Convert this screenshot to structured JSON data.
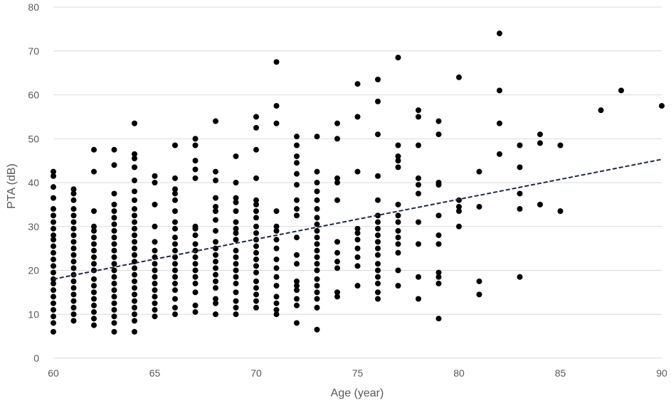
{
  "chart_data": {
    "type": "scatter",
    "title": "",
    "xlabel": "Age (year)",
    "ylabel": "PTA (dB)",
    "xlim": [
      60,
      90
    ],
    "ylim": [
      0,
      80
    ],
    "x_ticks": [
      60,
      65,
      70,
      75,
      80,
      85,
      90
    ],
    "y_ticks": [
      0,
      10,
      20,
      30,
      40,
      50,
      60,
      70,
      80
    ],
    "grid": "horizontal",
    "legend": "none",
    "marker_color": "#000000",
    "trendline": {
      "type": "linear",
      "style": "dashed",
      "color": "#1f2a44",
      "from": [
        60,
        18.0
      ],
      "to": [
        90,
        45.3
      ]
    },
    "points": [
      [
        60,
        6
      ],
      [
        60,
        8
      ],
      [
        60,
        9.5
      ],
      [
        60,
        11
      ],
      [
        60,
        12.5
      ],
      [
        60,
        14
      ],
      [
        60,
        15.5
      ],
      [
        60,
        17
      ],
      [
        60,
        18
      ],
      [
        60,
        19.5
      ],
      [
        60,
        21
      ],
      [
        60,
        22.5
      ],
      [
        60,
        24
      ],
      [
        60,
        25.5
      ],
      [
        60,
        27
      ],
      [
        60,
        28
      ],
      [
        60,
        29.5
      ],
      [
        60,
        31
      ],
      [
        60,
        32.5
      ],
      [
        60,
        34
      ],
      [
        60,
        36.5
      ],
      [
        60,
        39
      ],
      [
        60,
        41.5
      ],
      [
        60,
        42.5
      ],
      [
        61,
        8.5
      ],
      [
        61,
        10
      ],
      [
        61,
        11.5
      ],
      [
        61,
        13
      ],
      [
        61,
        14.5
      ],
      [
        61,
        16
      ],
      [
        61,
        17.5
      ],
      [
        61,
        19
      ],
      [
        61,
        20.5
      ],
      [
        61,
        22
      ],
      [
        61,
        23.5
      ],
      [
        61,
        25
      ],
      [
        61,
        26.5
      ],
      [
        61,
        28
      ],
      [
        61,
        29.5
      ],
      [
        61,
        31
      ],
      [
        61,
        32.5
      ],
      [
        61,
        34
      ],
      [
        61,
        36
      ],
      [
        61,
        37.5
      ],
      [
        61,
        38.5
      ],
      [
        62,
        7.5
      ],
      [
        62,
        9
      ],
      [
        62,
        10.5
      ],
      [
        62,
        12
      ],
      [
        62,
        13.5
      ],
      [
        62,
        15
      ],
      [
        62,
        16.5
      ],
      [
        62,
        18
      ],
      [
        62,
        20
      ],
      [
        62,
        21.5
      ],
      [
        62,
        23
      ],
      [
        62,
        24.5
      ],
      [
        62,
        26
      ],
      [
        62,
        27.5
      ],
      [
        62,
        29
      ],
      [
        62,
        30
      ],
      [
        62,
        33.5
      ],
      [
        62,
        42.5
      ],
      [
        62,
        47.5
      ],
      [
        63,
        6
      ],
      [
        63,
        8
      ],
      [
        63,
        9.5
      ],
      [
        63,
        11
      ],
      [
        63,
        12.5
      ],
      [
        63,
        14
      ],
      [
        63,
        15.5
      ],
      [
        63,
        17
      ],
      [
        63,
        18.5
      ],
      [
        63,
        20
      ],
      [
        63,
        21.5
      ],
      [
        63,
        23
      ],
      [
        63,
        24.5
      ],
      [
        63,
        26
      ],
      [
        63,
        27.5
      ],
      [
        63,
        29
      ],
      [
        63,
        30.5
      ],
      [
        63,
        32
      ],
      [
        63,
        33.5
      ],
      [
        63,
        35
      ],
      [
        63,
        37.5
      ],
      [
        63,
        44
      ],
      [
        63,
        47.5
      ],
      [
        64,
        6
      ],
      [
        64,
        8.5
      ],
      [
        64,
        10
      ],
      [
        64,
        11.5
      ],
      [
        64,
        13
      ],
      [
        64,
        14.5
      ],
      [
        64,
        16
      ],
      [
        64,
        17.5
      ],
      [
        64,
        19
      ],
      [
        64,
        20.5
      ],
      [
        64,
        22
      ],
      [
        64,
        23.5
      ],
      [
        64,
        25
      ],
      [
        64,
        26.5
      ],
      [
        64,
        28
      ],
      [
        64,
        29.5
      ],
      [
        64,
        31
      ],
      [
        64,
        32.5
      ],
      [
        64,
        34
      ],
      [
        64,
        36
      ],
      [
        64,
        38
      ],
      [
        64,
        40.5
      ],
      [
        64,
        43.5
      ],
      [
        64,
        45.5
      ],
      [
        64,
        46.5
      ],
      [
        64,
        53.5
      ],
      [
        65,
        9.5
      ],
      [
        65,
        11
      ],
      [
        65,
        12.5
      ],
      [
        65,
        14
      ],
      [
        65,
        15.5
      ],
      [
        65,
        17
      ],
      [
        65,
        18.5
      ],
      [
        65,
        20
      ],
      [
        65,
        21.5
      ],
      [
        65,
        23
      ],
      [
        65,
        24.5
      ],
      [
        65,
        26.5
      ],
      [
        65,
        30
      ],
      [
        65,
        35
      ],
      [
        65,
        40
      ],
      [
        65,
        41.5
      ],
      [
        66,
        10
      ],
      [
        66,
        11.5
      ],
      [
        66,
        13.5
      ],
      [
        66,
        15.5
      ],
      [
        66,
        17
      ],
      [
        66,
        18.5
      ],
      [
        66,
        20
      ],
      [
        66,
        21.5
      ],
      [
        66,
        23
      ],
      [
        66,
        24.5
      ],
      [
        66,
        26
      ],
      [
        66,
        27.5
      ],
      [
        66,
        29.5
      ],
      [
        66,
        31
      ],
      [
        66,
        33.5
      ],
      [
        66,
        36
      ],
      [
        66,
        37.5
      ],
      [
        66,
        38.5
      ],
      [
        66,
        41
      ],
      [
        66,
        48.5
      ],
      [
        67,
        10.5
      ],
      [
        67,
        12
      ],
      [
        67,
        15
      ],
      [
        67,
        17
      ],
      [
        67,
        18.5
      ],
      [
        67,
        20
      ],
      [
        67,
        21.5
      ],
      [
        67,
        23
      ],
      [
        67,
        24.5
      ],
      [
        67,
        26
      ],
      [
        67,
        28
      ],
      [
        67,
        29.5
      ],
      [
        67,
        30
      ],
      [
        67,
        41
      ],
      [
        67,
        43
      ],
      [
        67,
        45
      ],
      [
        67,
        48.5
      ],
      [
        67,
        50
      ],
      [
        68,
        10
      ],
      [
        68,
        12.5
      ],
      [
        68,
        13.5
      ],
      [
        68,
        16
      ],
      [
        68,
        17.5
      ],
      [
        68,
        19
      ],
      [
        68,
        20.5
      ],
      [
        68,
        22
      ],
      [
        68,
        23.5
      ],
      [
        68,
        25
      ],
      [
        68,
        26.5
      ],
      [
        68,
        29
      ],
      [
        68,
        31.5
      ],
      [
        68,
        33.5
      ],
      [
        68,
        34.5
      ],
      [
        68,
        36.5
      ],
      [
        68,
        40.5
      ],
      [
        68,
        42.5
      ],
      [
        68,
        54
      ],
      [
        69,
        10
      ],
      [
        69,
        11.5
      ],
      [
        69,
        13
      ],
      [
        69,
        15
      ],
      [
        69,
        17
      ],
      [
        69,
        18.5
      ],
      [
        69,
        20
      ],
      [
        69,
        21.5
      ],
      [
        69,
        23
      ],
      [
        69,
        24.5
      ],
      [
        69,
        27
      ],
      [
        69,
        28.5
      ],
      [
        69,
        29.5
      ],
      [
        69,
        31
      ],
      [
        69,
        33.5
      ],
      [
        69,
        35.5
      ],
      [
        69,
        36.5
      ],
      [
        69,
        40
      ],
      [
        69,
        46
      ],
      [
        70,
        11.5
      ],
      [
        70,
        13
      ],
      [
        70,
        14.5
      ],
      [
        70,
        16
      ],
      [
        70,
        17.5
      ],
      [
        70,
        19.5
      ],
      [
        70,
        21
      ],
      [
        70,
        22.5
      ],
      [
        70,
        24
      ],
      [
        70,
        25.5
      ],
      [
        70,
        27
      ],
      [
        70,
        28.5
      ],
      [
        70,
        30
      ],
      [
        70,
        32
      ],
      [
        70,
        33.5
      ],
      [
        70,
        35
      ],
      [
        70,
        36
      ],
      [
        70,
        41
      ],
      [
        70,
        47.5
      ],
      [
        70,
        52.5
      ],
      [
        70,
        55
      ],
      [
        71,
        10
      ],
      [
        71,
        11
      ],
      [
        71,
        12.5
      ],
      [
        71,
        14
      ],
      [
        71,
        16.5
      ],
      [
        71,
        18.5
      ],
      [
        71,
        20.5
      ],
      [
        71,
        22.5
      ],
      [
        71,
        25
      ],
      [
        71,
        27
      ],
      [
        71,
        29
      ],
      [
        71,
        30
      ],
      [
        71,
        33.5
      ],
      [
        71,
        53.5
      ],
      [
        71,
        57.5
      ],
      [
        71,
        67.5
      ],
      [
        72,
        8
      ],
      [
        72,
        12
      ],
      [
        72,
        13.5
      ],
      [
        72,
        15.5
      ],
      [
        72,
        16.5
      ],
      [
        72,
        17.5
      ],
      [
        72,
        21.5
      ],
      [
        72,
        23.5
      ],
      [
        72,
        27.5
      ],
      [
        72,
        32.5
      ],
      [
        72,
        34
      ],
      [
        72,
        36
      ],
      [
        72,
        39.5
      ],
      [
        72,
        42
      ],
      [
        72,
        44.5
      ],
      [
        72,
        46
      ],
      [
        72,
        48.5
      ],
      [
        72,
        50.5
      ],
      [
        73,
        6.5
      ],
      [
        73,
        11.5
      ],
      [
        73,
        13.5
      ],
      [
        73,
        15
      ],
      [
        73,
        16.5
      ],
      [
        73,
        18
      ],
      [
        73,
        20
      ],
      [
        73,
        21.5
      ],
      [
        73,
        23
      ],
      [
        73,
        24.5
      ],
      [
        73,
        26
      ],
      [
        73,
        27.5
      ],
      [
        73,
        29
      ],
      [
        73,
        30.5
      ],
      [
        73,
        32
      ],
      [
        73,
        34
      ],
      [
        73,
        36
      ],
      [
        73,
        38
      ],
      [
        73,
        40
      ],
      [
        73,
        42.5
      ],
      [
        73,
        50.5
      ],
      [
        74,
        14
      ],
      [
        74,
        15
      ],
      [
        74,
        20.5
      ],
      [
        74,
        22
      ],
      [
        74,
        24
      ],
      [
        74,
        26.5
      ],
      [
        74,
        36
      ],
      [
        74,
        40
      ],
      [
        74,
        41
      ],
      [
        74,
        50
      ],
      [
        74,
        53.5
      ],
      [
        75,
        16.5
      ],
      [
        75,
        21
      ],
      [
        75,
        23
      ],
      [
        75,
        25
      ],
      [
        75,
        27
      ],
      [
        75,
        28.5
      ],
      [
        75,
        29.5
      ],
      [
        75,
        42.5
      ],
      [
        75,
        55
      ],
      [
        75,
        62.5
      ],
      [
        76,
        13.5
      ],
      [
        76,
        15
      ],
      [
        76,
        17
      ],
      [
        76,
        18.5
      ],
      [
        76,
        20
      ],
      [
        76,
        21.5
      ],
      [
        76,
        23.5
      ],
      [
        76,
        25
      ],
      [
        76,
        26.5
      ],
      [
        76,
        28
      ],
      [
        76,
        29.5
      ],
      [
        76,
        31
      ],
      [
        76,
        32.5
      ],
      [
        76,
        36
      ],
      [
        76,
        41.5
      ],
      [
        76,
        51
      ],
      [
        76,
        58.5
      ],
      [
        76,
        63.5
      ],
      [
        77,
        16.5
      ],
      [
        77,
        20
      ],
      [
        77,
        24
      ],
      [
        77,
        26
      ],
      [
        77,
        27.5
      ],
      [
        77,
        29
      ],
      [
        77,
        31
      ],
      [
        77,
        32.5
      ],
      [
        77,
        35
      ],
      [
        77,
        43.5
      ],
      [
        77,
        45
      ],
      [
        77,
        46
      ],
      [
        77,
        48.5
      ],
      [
        77,
        68.5
      ],
      [
        78,
        13.5
      ],
      [
        78,
        18.5
      ],
      [
        78,
        26
      ],
      [
        78,
        31
      ],
      [
        78,
        37.5
      ],
      [
        78,
        39.5
      ],
      [
        78,
        41
      ],
      [
        78,
        48.5
      ],
      [
        78,
        55
      ],
      [
        78,
        56.5
      ],
      [
        79,
        9
      ],
      [
        79,
        17
      ],
      [
        79,
        18.5
      ],
      [
        79,
        19.5
      ],
      [
        79,
        26
      ],
      [
        79,
        28
      ],
      [
        79,
        32.5
      ],
      [
        79,
        39.5
      ],
      [
        79,
        40
      ],
      [
        79,
        51
      ],
      [
        79,
        54
      ],
      [
        80,
        30
      ],
      [
        80,
        33.5
      ],
      [
        80,
        34.5
      ],
      [
        80,
        36
      ],
      [
        80,
        64
      ],
      [
        81,
        14.5
      ],
      [
        81,
        17.5
      ],
      [
        81,
        34.5
      ],
      [
        81,
        42.5
      ],
      [
        82,
        46.5
      ],
      [
        82,
        53.5
      ],
      [
        82,
        61
      ],
      [
        82,
        74
      ],
      [
        83,
        18.5
      ],
      [
        83,
        34
      ],
      [
        83,
        37.5
      ],
      [
        83,
        43.5
      ],
      [
        83,
        48.5
      ],
      [
        84,
        35
      ],
      [
        84,
        49
      ],
      [
        84,
        51
      ],
      [
        85,
        33.5
      ],
      [
        85,
        48.5
      ],
      [
        87,
        56.5
      ],
      [
        88,
        61
      ],
      [
        90,
        57.5
      ]
    ]
  }
}
